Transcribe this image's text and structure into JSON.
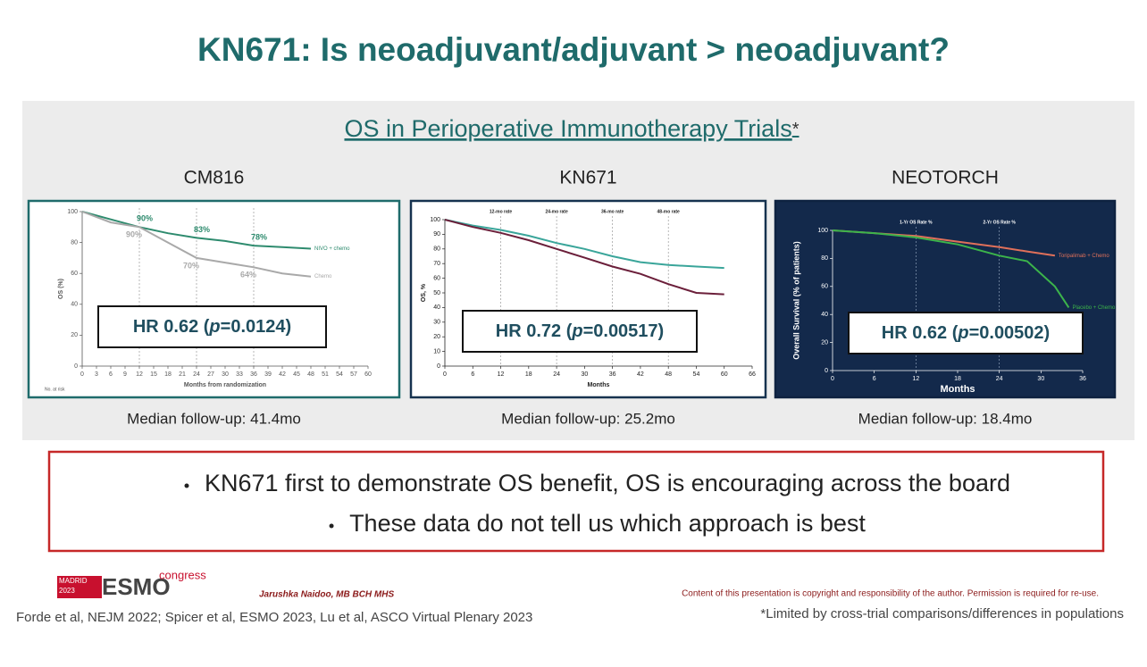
{
  "title": "KN671: Is neoadjuvant/adjuvant > neoadjuvant?",
  "subtitle": "OS in Perioperative Immunotherapy Trials",
  "subtitle_mark": "*",
  "panels": [
    {
      "name": "CM816",
      "hr_prefix": "HR 0.62 (",
      "hr_p": "p",
      "hr_rest": "=0.0124)",
      "follow_up": "Median follow-up: 41.4mo",
      "chart": {
        "type": "line",
        "xlabel": "Months from randomization",
        "ylabel": "OS (%)",
        "risk_label": "No. at risk",
        "xlim": [
          0,
          60
        ],
        "xticks": [
          0,
          3,
          6,
          9,
          12,
          15,
          18,
          21,
          24,
          27,
          30,
          33,
          36,
          39,
          42,
          45,
          48,
          51,
          54,
          57,
          60
        ],
        "ylim": [
          0,
          100
        ],
        "yticks": [
          0,
          20,
          40,
          60,
          80,
          100
        ],
        "landmarks": [
          12,
          24,
          36
        ],
        "series": [
          {
            "name": "NIVO + chemo",
            "color": "#2e8b6e",
            "x": [
              0,
              6,
              12,
              18,
              24,
              30,
              36,
              42,
              48
            ],
            "values": [
              100,
              95,
              90,
              86,
              83,
              81,
              78,
              77,
              76
            ]
          },
          {
            "name": "Chemo",
            "color": "#a9a9a9",
            "x": [
              0,
              6,
              12,
              18,
              24,
              30,
              36,
              42,
              48
            ],
            "values": [
              100,
              93,
              90,
              80,
              70,
              67,
              64,
              60,
              58
            ]
          }
        ],
        "rate_labels": [
          {
            "x": 12,
            "value": 90,
            "label": "90%",
            "color": "#2e8b6e"
          },
          {
            "x": 24,
            "value": 83,
            "label": "83%",
            "color": "#2e8b6e"
          },
          {
            "x": 36,
            "value": 78,
            "label": "78%",
            "color": "#2e8b6e"
          },
          {
            "x": 12,
            "value": 90,
            "label": "90%",
            "color": "#a9a9a9"
          },
          {
            "x": 24,
            "value": 70,
            "label": "70%",
            "color": "#a9a9a9"
          },
          {
            "x": 36,
            "value": 64,
            "label": "64%",
            "color": "#a9a9a9"
          }
        ]
      }
    },
    {
      "name": "KN671",
      "hr_prefix": "HR 0.72 (",
      "hr_p": "p",
      "hr_rest": "=0.00517)",
      "follow_up": "Median follow-up: 25.2mo",
      "chart": {
        "type": "line",
        "xlabel": "Months",
        "ylabel": "OS, %",
        "xlim": [
          0,
          66
        ],
        "xticks": [
          0,
          6,
          12,
          18,
          24,
          30,
          36,
          42,
          48,
          54,
          60,
          66
        ],
        "ylim": [
          0,
          100
        ],
        "yticks": [
          0,
          10,
          20,
          30,
          40,
          50,
          60,
          70,
          80,
          90,
          100
        ],
        "landmarks": [
          12,
          24,
          36,
          48
        ],
        "landmark_labels": [
          "12-mo rate",
          "24-mo rate",
          "36-mo rate",
          "48-mo rate"
        ],
        "series": [
          {
            "color": "#3aa59a",
            "x": [
              0,
              6,
              12,
              18,
              24,
              30,
              36,
              42,
              48,
              54,
              60
            ],
            "values": [
              100,
              96,
              93,
              89,
              84,
              80,
              75,
              71,
              69,
              68,
              67
            ]
          },
          {
            "color": "#6b1f3a",
            "x": [
              0,
              6,
              12,
              18,
              24,
              30,
              36,
              42,
              48,
              54,
              60
            ],
            "values": [
              100,
              95,
              91,
              86,
              80,
              74,
              68,
              63,
              56,
              50,
              49
            ]
          }
        ]
      }
    },
    {
      "name": "NEOTORCH",
      "hr_prefix": "HR 0.62 (",
      "hr_p": "p",
      "hr_rest": "=0.00502)",
      "follow_up": "Median follow-up: 18.4mo",
      "chart": {
        "type": "line",
        "xlabel": "Months",
        "ylabel": "Overall Survival (% of patients)",
        "xlim": [
          0,
          36
        ],
        "xticks": [
          0,
          6,
          12,
          18,
          24,
          30,
          36
        ],
        "ylim": [
          0,
          100
        ],
        "yticks": [
          0,
          20,
          40,
          60,
          80,
          100
        ],
        "landmarks": [
          12,
          24
        ],
        "landmark_labels": [
          "1-Yr OS Rate %",
          "2-Yr OS Rate %"
        ],
        "series": [
          {
            "name": "Toripalimab + Chemo",
            "color": "#e0705a",
            "x": [
              0,
              6,
              12,
              18,
              24,
              28,
              32
            ],
            "values": [
              100,
              98,
              96,
              92,
              88,
              85,
              82
            ]
          },
          {
            "name": "Placebo + Chemo",
            "color": "#3cb44b",
            "x": [
              0,
              6,
              12,
              18,
              24,
              28,
              32,
              34
            ],
            "values": [
              100,
              98,
              95,
              90,
              82,
              78,
              60,
              45
            ]
          }
        ]
      }
    }
  ],
  "bullets": [
    "KN671 first to demonstrate OS benefit, OS is encouraging across the board",
    "These data do not tell us which approach is best"
  ],
  "footer": {
    "logo_city": "MADRID",
    "logo_year": "2023",
    "logo_name": "ESMO",
    "logo_word": "congress",
    "author": "Jarushka Naidoo, MB BCH MHS",
    "copyright": "Content of this presentation is copyright and responsibility of the author. Permission is required for re-use.",
    "references": "Forde et al, NEJM 2022; Spicer et al, ESMO 2023, Lu et al, ASCO Virtual Plenary 2023",
    "footnote": "*Limited by cross-trial comparisons/differences in populations"
  }
}
